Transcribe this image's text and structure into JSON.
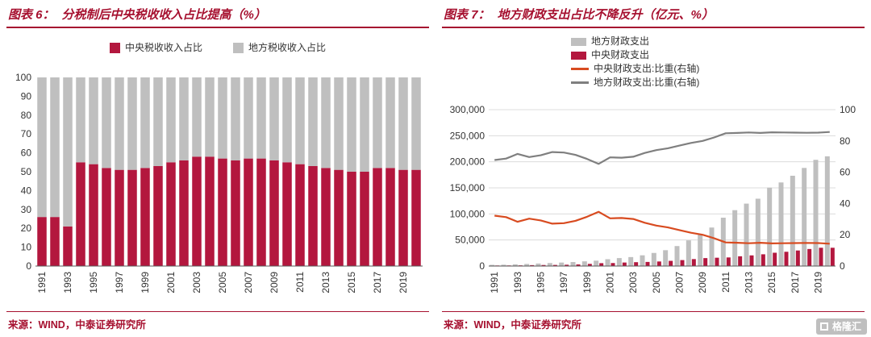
{
  "theme": {
    "accent": "#A6102F",
    "axis": "#595959",
    "grid": "#DCDCDC",
    "text": "#333333"
  },
  "watermark": {
    "text": "格隆汇",
    "icon": "gelonghui-square-logo"
  },
  "panels": [
    {
      "fig_label": "图表 6：",
      "title": "分税制后中央税收收入占比提高（%）",
      "source": "来源：WIND，中泰证券研究所"
    },
    {
      "fig_label": "图表 7：",
      "title": "地方财政支出占比不降反升（亿元、%）",
      "source": "来源：WIND，中泰证券研究所"
    }
  ],
  "chart_data": [
    {
      "type": "bar",
      "subtype": "stacked",
      "title": "分税制后中央税收收入占比提高（%）",
      "legend_position": "top",
      "ylim": [
        0,
        100
      ],
      "ytick_step": 10,
      "xtick_every": 2,
      "categories": [
        1991,
        1992,
        1993,
        1994,
        1995,
        1996,
        1997,
        1998,
        1999,
        2000,
        2001,
        2002,
        2003,
        2004,
        2005,
        2006,
        2007,
        2008,
        2009,
        2010,
        2011,
        2012,
        2013,
        2014,
        2015,
        2016,
        2017,
        2018,
        2019,
        2020
      ],
      "series": [
        {
          "name": "中央税收收入占比",
          "color": "#B3173E",
          "values": [
            26,
            26,
            21,
            55,
            54,
            52,
            51,
            51,
            52,
            53,
            55,
            56,
            58,
            58,
            57,
            56,
            57,
            57,
            56,
            55,
            54,
            53,
            52,
            51,
            50,
            50,
            52,
            52,
            51,
            51
          ]
        },
        {
          "name": "地方税收收入占比",
          "color": "#BFBFBF",
          "values": [
            74,
            74,
            79,
            45,
            46,
            48,
            49,
            49,
            48,
            47,
            45,
            44,
            42,
            42,
            43,
            44,
            43,
            43,
            44,
            45,
            46,
            47,
            48,
            49,
            50,
            50,
            48,
            48,
            49,
            49
          ]
        }
      ]
    },
    {
      "type": "combo",
      "title": "地方财政支出占比不降反升（亿元、%）",
      "legend_position": "top",
      "left_ylim": [
        0,
        300000
      ],
      "left_ytick_step": 50000,
      "right_ylim": [
        0,
        100
      ],
      "right_ytick_step": 20,
      "grid": true,
      "xtick_every": 2,
      "categories": [
        1991,
        1992,
        1993,
        1994,
        1995,
        1996,
        1997,
        1998,
        1999,
        2000,
        2001,
        2002,
        2003,
        2004,
        2005,
        2006,
        2007,
        2008,
        2009,
        2010,
        2011,
        2012,
        2013,
        2014,
        2015,
        2016,
        2017,
        2018,
        2019,
        2020
      ],
      "bar_series": [
        {
          "name": "地方财政支出",
          "color": "#BFBFBF",
          "axis": "left",
          "values": [
            2295,
            2571,
            3330,
            4038,
            4828,
            5786,
            6701,
            7673,
            9035,
            10367,
            13135,
            15281,
            17230,
            20593,
            25154,
            30431,
            38339,
            49248,
            61044,
            73884,
            92734,
            107188,
            119740,
            129215,
            150336,
            160351,
            173228,
            188198,
            203743,
            210492
          ]
        },
        {
          "name": "中央财政支出",
          "color": "#B3173E",
          "axis": "left",
          "values": [
            1091,
            1170,
            1312,
            1754,
            1995,
            2151,
            2533,
            3126,
            4152,
            5520,
            5768,
            6772,
            7420,
            7894,
            8776,
            9991,
            11442,
            13344,
            15256,
            15990,
            16514,
            18765,
            20472,
            22570,
            25542,
            27404,
            29857,
            32708,
            35115,
            35097
          ]
        }
      ],
      "line_series": [
        {
          "name": "中央财政支出:比重(右轴)",
          "color": "#D84B20",
          "axis": "right",
          "values": [
            32.2,
            31.3,
            28.3,
            30.3,
            29.2,
            27.1,
            27.4,
            28.9,
            31.5,
            34.7,
            30.5,
            30.7,
            30.1,
            27.7,
            25.9,
            24.7,
            23.0,
            21.3,
            20.0,
            17.8,
            15.1,
            14.9,
            14.6,
            14.9,
            14.5,
            14.6,
            14.7,
            14.8,
            14.7,
            14.3
          ]
        },
        {
          "name": "地方财政支出:比重(右轴)",
          "color": "#7F7F7F",
          "axis": "right",
          "values": [
            67.8,
            68.7,
            71.7,
            69.7,
            70.8,
            72.9,
            72.6,
            71.1,
            68.5,
            65.3,
            69.5,
            69.3,
            69.9,
            72.3,
            74.1,
            75.3,
            77.0,
            78.7,
            80.0,
            82.2,
            84.9,
            85.1,
            85.4,
            85.1,
            85.5,
            85.4,
            85.3,
            85.2,
            85.3,
            85.7
          ]
        }
      ]
    }
  ]
}
